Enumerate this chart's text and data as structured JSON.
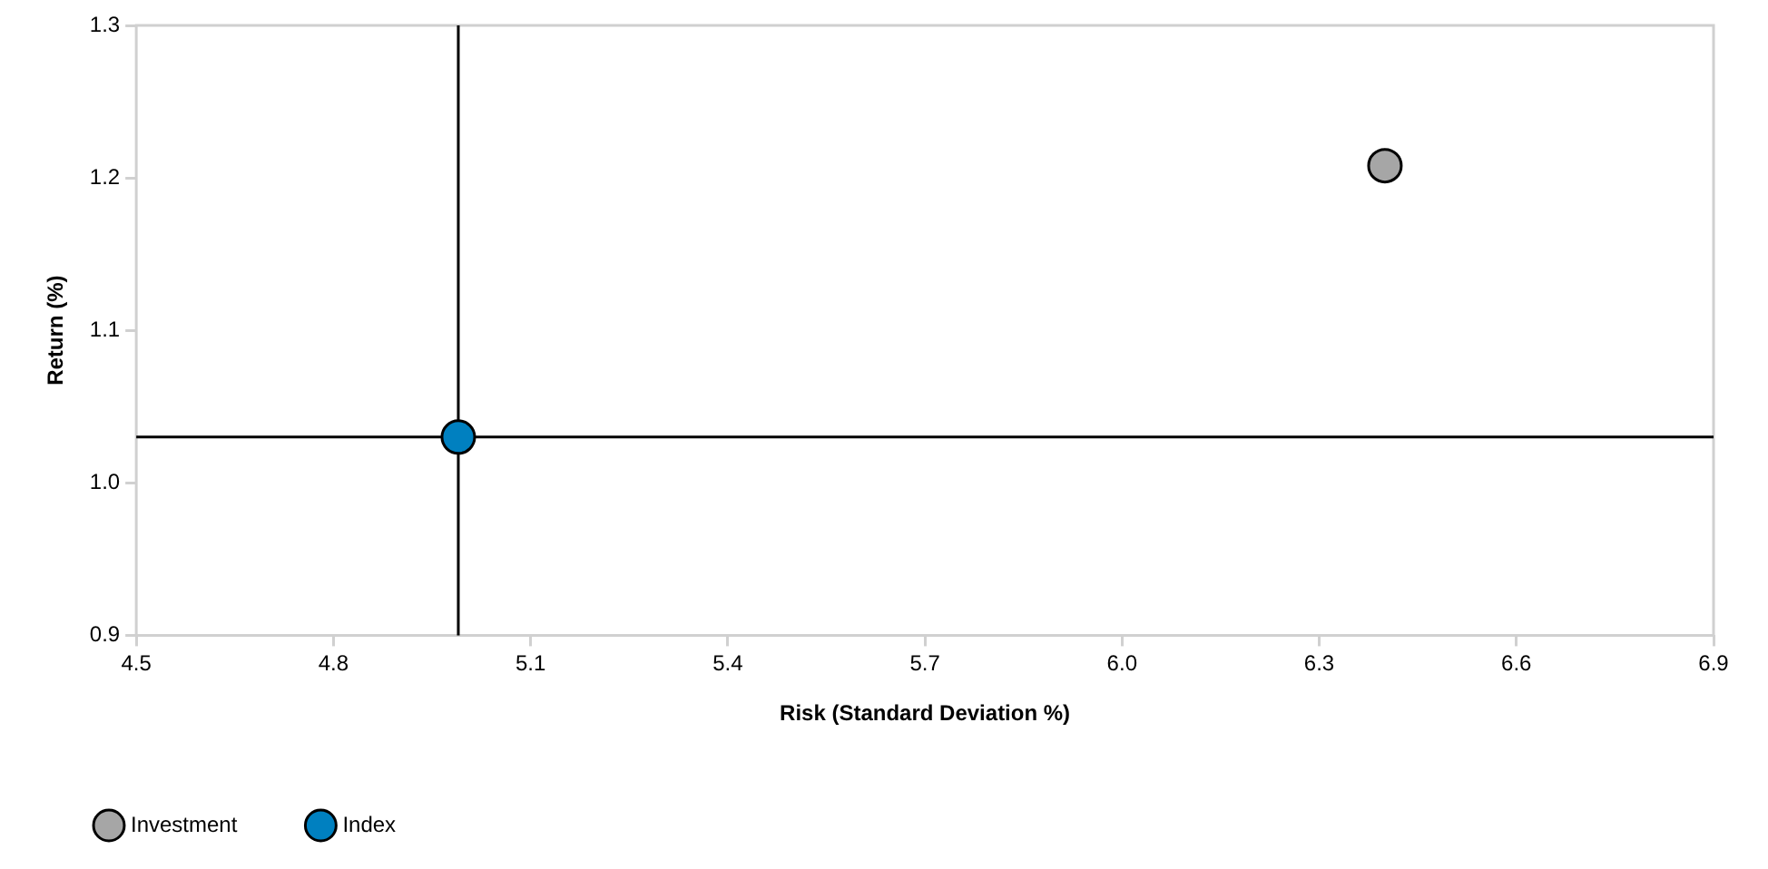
{
  "chart_data": {
    "type": "scatter",
    "xlabel": "Risk (Standard Deviation %)",
    "ylabel": "Return (%)",
    "series": [
      {
        "name": "Investment",
        "color": "#a6a6a6",
        "x": [
          6.4
        ],
        "values": [
          1.208
        ]
      },
      {
        "name": "Index",
        "color": "#0080c0",
        "x": [
          4.99
        ],
        "values": [
          1.03
        ]
      }
    ],
    "xlim": [
      4.5,
      6.9
    ],
    "xticks": [
      4.5,
      4.8,
      5.1,
      5.4,
      5.7,
      {
        "value": 6,
        "label": "6.0"
      },
      6.3,
      6.6,
      6.9
    ],
    "ylim": [
      0.9,
      1.3
    ],
    "yticks": [
      0.9,
      {
        "value": 1,
        "label": "1.0"
      },
      1.1,
      1.2,
      1.3
    ],
    "ref_lines": [
      {
        "axis": "x",
        "value": 4.99,
        "color": "#000000"
      },
      {
        "axis": "y",
        "value": 1.03,
        "color": "#000000"
      }
    ],
    "grid": false,
    "legend": "bottom left",
    "marker": "circle"
  }
}
